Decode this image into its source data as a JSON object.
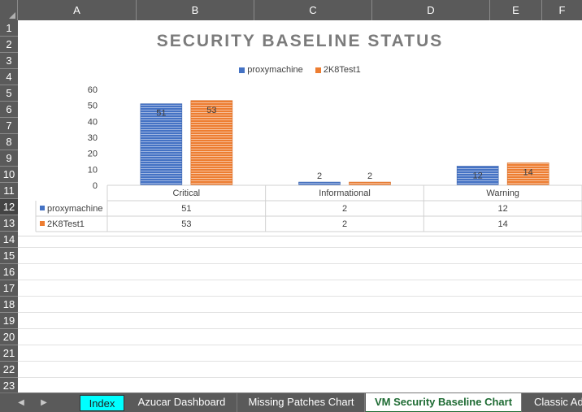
{
  "columns": [
    "A",
    "B",
    "C",
    "D",
    "E",
    "F"
  ],
  "rows": [
    "1",
    "2",
    "3",
    "4",
    "5",
    "6",
    "7",
    "8",
    "9",
    "10",
    "11",
    "12",
    "13",
    "14",
    "15",
    "16",
    "17",
    "18",
    "19",
    "20",
    "21",
    "22",
    "23"
  ],
  "active_rows": [
    "12"
  ],
  "chart_data": {
    "type": "bar",
    "title": "SECURITY BASELINE STATUS",
    "categories": [
      "Critical",
      "Informational",
      "Warning"
    ],
    "series": [
      {
        "name": "proxymachine",
        "values": [
          51,
          2,
          12
        ],
        "color": "#4472c4"
      },
      {
        "name": "2K8Test1",
        "values": [
          53,
          2,
          14
        ],
        "color": "#ed7d31"
      }
    ],
    "ylim": [
      0,
      60
    ],
    "yticks": [
      "0",
      "10",
      "20",
      "30",
      "40",
      "50",
      "60"
    ],
    "legend_position": "top",
    "data_table": true,
    "grid": false
  },
  "sheet_tabs": {
    "prev_arrow": "◀",
    "next_arrow": "▶",
    "tabs": [
      {
        "label": "Index",
        "state": "highlighted"
      },
      {
        "label": "Azucar Dashboard",
        "state": "normal"
      },
      {
        "label": "Missing Patches Chart",
        "state": "normal"
      },
      {
        "label": "VM Security Baseline Chart",
        "state": "active"
      },
      {
        "label": "Classic Ad",
        "state": "normal"
      }
    ]
  }
}
